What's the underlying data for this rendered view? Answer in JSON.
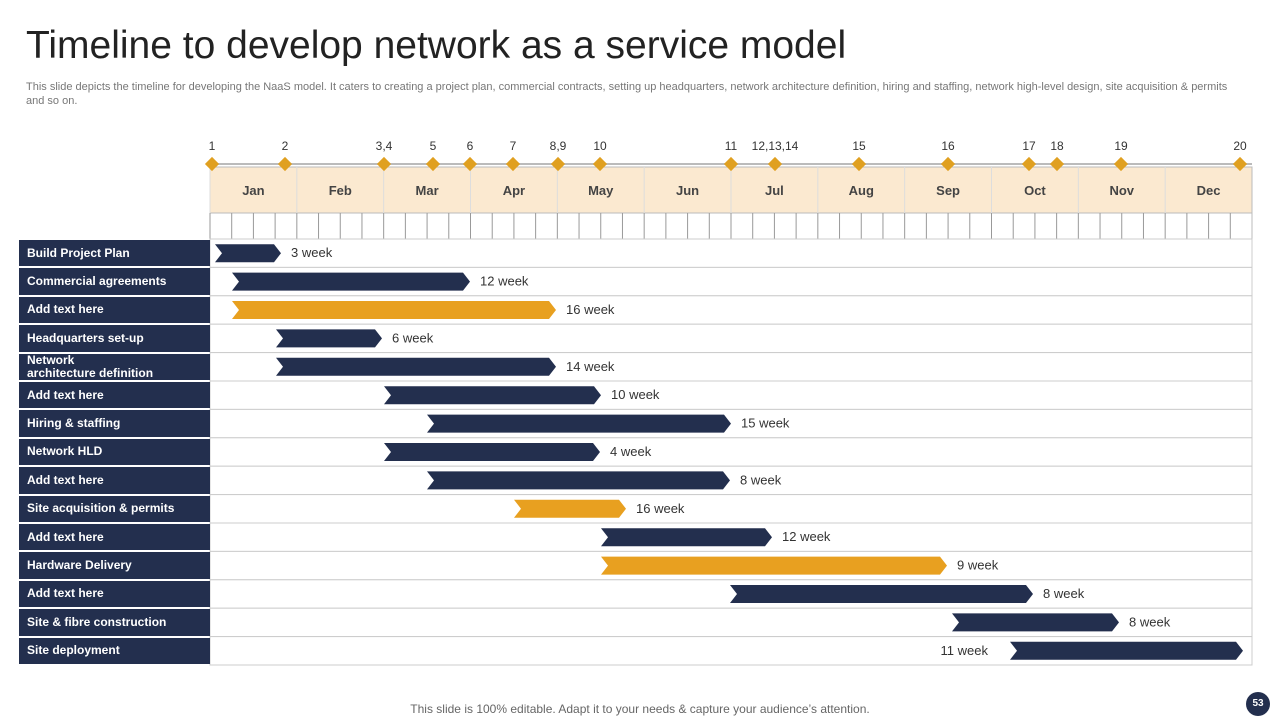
{
  "header": {
    "title": "Timeline to develop network as a service model",
    "subtitle": "This slide depicts the timeline for developing the NaaS model. It caters to  creating a project plan, commercial contracts, setting up headquarters, network architecture definition, hiring and staffing, network high-level design, site acquisition & permits and so on."
  },
  "milestones": [
    "1",
    "2",
    "3,4",
    "5",
    "6",
    "7",
    "8,9",
    "10",
    "11",
    "12,13,14",
    "15",
    "16",
    "17",
    "18",
    "19",
    "20"
  ],
  "months": [
    "Jan",
    "Feb",
    "Mar",
    "Apr",
    "May",
    "Jun",
    "Jul",
    "Aug",
    "Sep",
    "Oct",
    "Nov",
    "Dec"
  ],
  "tasks": [
    {
      "label": "Build  Project Plan",
      "duration": "3 week"
    },
    {
      "label": "Commercial agreements",
      "duration": "12 week"
    },
    {
      "label": "Add  text here",
      "duration": "16 week"
    },
    {
      "label": "Headquarters set-up",
      "duration": "6 week"
    },
    {
      "label": "Network\narchitecture definition",
      "duration": "14 week"
    },
    {
      "label": "Add  text here",
      "duration": "10 week"
    },
    {
      "label": "Hiring  & staffing",
      "duration": "15 week"
    },
    {
      "label": "Network HLD",
      "duration": "4 week"
    },
    {
      "label": "Add  text here",
      "duration": "8 week"
    },
    {
      "label": "Site acquisition  & permits",
      "duration": "16 week"
    },
    {
      "label": "Add  text here",
      "duration": "12 week"
    },
    {
      "label": "Hardware Delivery",
      "duration": "9 week"
    },
    {
      "label": "Add  text here",
      "duration": "8 week"
    },
    {
      "label": "Site & fibre construction",
      "duration": "8 week"
    },
    {
      "label": "Site deployment",
      "duration": "11 week"
    }
  ],
  "footer": {
    "note": "This slide is 100% editable. Adapt it to your needs & capture your audience’s attention.",
    "page_number": "53"
  }
}
